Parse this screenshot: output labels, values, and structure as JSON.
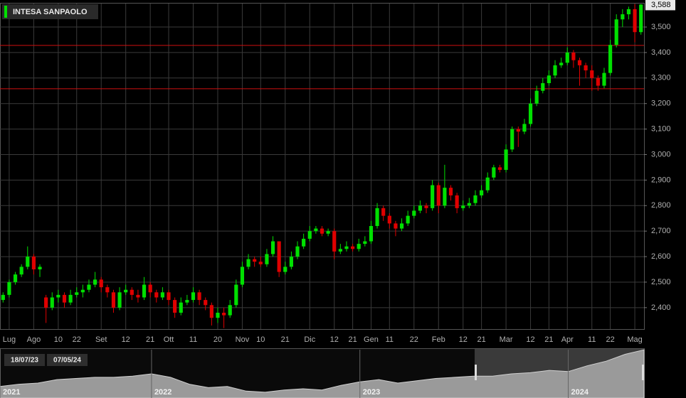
{
  "chart_data": {
    "type": "candlestick",
    "legend": "INTESA SANPAOLO",
    "up_color": "#00e000",
    "down_color": "#e00000",
    "grid": true,
    "ylim": [
      2.316,
      3.592
    ],
    "yticks": [
      {
        "value": 2.4,
        "label": "2,400"
      },
      {
        "value": 2.5,
        "label": "2,500"
      },
      {
        "value": 2.6,
        "label": "2,600"
      },
      {
        "value": 2.7,
        "label": "2,700"
      },
      {
        "value": 2.8,
        "label": "2,800"
      },
      {
        "value": 2.9,
        "label": "2,900"
      },
      {
        "value": 3.0,
        "label": "3,000"
      },
      {
        "value": 3.1,
        "label": "3,100"
      },
      {
        "value": 3.2,
        "label": "3,200"
      },
      {
        "value": 3.3,
        "label": "3,300"
      },
      {
        "value": 3.4,
        "label": "3,400"
      },
      {
        "value": 3.5,
        "label": "3,500"
      }
    ],
    "last_price": {
      "value": 3.588,
      "label": "3,588"
    },
    "hlines": [
      3.428,
      3.258
    ],
    "hline_color": "#d01010",
    "categories": [
      null,
      "Lug",
      null,
      null,
      null,
      "Ago",
      null,
      null,
      null,
      "10",
      null,
      null,
      "22",
      null,
      null,
      null,
      "Set",
      null,
      null,
      null,
      "12",
      null,
      null,
      null,
      "21",
      null,
      null,
      "Ott",
      null,
      null,
      null,
      "11",
      null,
      null,
      null,
      "20",
      null,
      null,
      null,
      "Nov",
      null,
      null,
      "10",
      null,
      null,
      null,
      "21",
      null,
      null,
      null,
      "Dic",
      null,
      null,
      null,
      "12",
      null,
      null,
      "21",
      null,
      null,
      "Gen",
      null,
      null,
      "11",
      null,
      null,
      null,
      "22",
      null,
      null,
      null,
      "Feb",
      null,
      null,
      null,
      "12",
      null,
      null,
      "21",
      null,
      null,
      null,
      "Mar",
      null,
      null,
      null,
      "12",
      null,
      null,
      "21",
      null,
      null,
      "Apr",
      null,
      null,
      null,
      "11",
      null,
      null,
      "22",
      null,
      null,
      null,
      "Mag",
      null
    ],
    "candles": [
      [
        2.43,
        2.46,
        2.42,
        2.45
      ],
      [
        2.45,
        2.51,
        2.44,
        2.5
      ],
      [
        2.5,
        2.54,
        2.49,
        2.53
      ],
      [
        2.53,
        2.57,
        2.52,
        2.56
      ],
      [
        2.56,
        2.64,
        2.55,
        2.6
      ],
      [
        2.6,
        2.61,
        2.53,
        2.55
      ],
      [
        2.55,
        2.57,
        2.52,
        2.56
      ],
      [
        2.44,
        2.45,
        2.34,
        2.4
      ],
      [
        2.4,
        2.46,
        2.39,
        2.44
      ],
      [
        2.44,
        2.47,
        2.42,
        2.45
      ],
      [
        2.45,
        2.46,
        2.4,
        2.42
      ],
      [
        2.42,
        2.47,
        2.41,
        2.45
      ],
      [
        2.45,
        2.48,
        2.44,
        2.46
      ],
      [
        2.46,
        2.49,
        2.44,
        2.47
      ],
      [
        2.47,
        2.51,
        2.46,
        2.49
      ],
      [
        2.49,
        2.54,
        2.48,
        2.51
      ],
      [
        2.51,
        2.52,
        2.46,
        2.48
      ],
      [
        2.48,
        2.49,
        2.44,
        2.46
      ],
      [
        2.46,
        2.47,
        2.38,
        2.4
      ],
      [
        2.4,
        2.48,
        2.39,
        2.46
      ],
      [
        2.46,
        2.49,
        2.45,
        2.47
      ],
      [
        2.47,
        2.48,
        2.43,
        2.45
      ],
      [
        2.45,
        2.47,
        2.42,
        2.44
      ],
      [
        2.44,
        2.52,
        2.43,
        2.49
      ],
      [
        2.49,
        2.5,
        2.44,
        2.46
      ],
      [
        2.46,
        2.47,
        2.42,
        2.44
      ],
      [
        2.44,
        2.48,
        2.43,
        2.46
      ],
      [
        2.46,
        2.47,
        2.41,
        2.43
      ],
      [
        2.43,
        2.44,
        2.36,
        2.38
      ],
      [
        2.38,
        2.44,
        2.37,
        2.42
      ],
      [
        2.42,
        2.45,
        2.41,
        2.43
      ],
      [
        2.43,
        2.48,
        2.42,
        2.46
      ],
      [
        2.46,
        2.47,
        2.41,
        2.43
      ],
      [
        2.43,
        2.44,
        2.39,
        2.41
      ],
      [
        2.41,
        2.42,
        2.33,
        2.36
      ],
      [
        2.36,
        2.4,
        2.34,
        2.38
      ],
      [
        2.38,
        2.4,
        2.32,
        2.37
      ],
      [
        2.37,
        2.43,
        2.36,
        2.41
      ],
      [
        2.41,
        2.51,
        2.4,
        2.49
      ],
      [
        2.49,
        2.58,
        2.48,
        2.56
      ],
      [
        2.56,
        2.61,
        2.55,
        2.59
      ],
      [
        2.59,
        2.6,
        2.56,
        2.58
      ],
      [
        2.58,
        2.6,
        2.56,
        2.57
      ],
      [
        2.57,
        2.63,
        2.56,
        2.61
      ],
      [
        2.61,
        2.68,
        2.6,
        2.66
      ],
      [
        2.66,
        2.66,
        2.52,
        2.54
      ],
      [
        2.54,
        2.58,
        2.53,
        2.56
      ],
      [
        2.56,
        2.62,
        2.55,
        2.6
      ],
      [
        2.6,
        2.66,
        2.59,
        2.64
      ],
      [
        2.64,
        2.69,
        2.63,
        2.67
      ],
      [
        2.67,
        2.72,
        2.66,
        2.7
      ],
      [
        2.7,
        2.72,
        2.69,
        2.71
      ],
      [
        2.71,
        2.72,
        2.68,
        2.69
      ],
      [
        2.69,
        2.71,
        2.68,
        2.7
      ],
      [
        2.7,
        2.71,
        2.59,
        2.62
      ],
      [
        2.62,
        2.65,
        2.61,
        2.63
      ],
      [
        2.63,
        2.66,
        2.62,
        2.64
      ],
      [
        2.64,
        2.65,
        2.62,
        2.63
      ],
      [
        2.63,
        2.67,
        2.62,
        2.65
      ],
      [
        2.65,
        2.68,
        2.64,
        2.66
      ],
      [
        2.66,
        2.74,
        2.65,
        2.72
      ],
      [
        2.72,
        2.81,
        2.71,
        2.79
      ],
      [
        2.79,
        2.8,
        2.74,
        2.76
      ],
      [
        2.76,
        2.77,
        2.71,
        2.73
      ],
      [
        2.73,
        2.74,
        2.68,
        2.71
      ],
      [
        2.71,
        2.75,
        2.7,
        2.73
      ],
      [
        2.73,
        2.78,
        2.72,
        2.76
      ],
      [
        2.76,
        2.8,
        2.75,
        2.78
      ],
      [
        2.78,
        2.82,
        2.77,
        2.8
      ],
      [
        2.8,
        2.81,
        2.77,
        2.79
      ],
      [
        2.79,
        2.9,
        2.78,
        2.88
      ],
      [
        2.88,
        2.89,
        2.77,
        2.8
      ],
      [
        2.8,
        2.96,
        2.79,
        2.87
      ],
      [
        2.87,
        2.88,
        2.82,
        2.84
      ],
      [
        2.84,
        2.85,
        2.77,
        2.79
      ],
      [
        2.79,
        2.82,
        2.78,
        2.8
      ],
      [
        2.8,
        2.83,
        2.79,
        2.81
      ],
      [
        2.81,
        2.86,
        2.8,
        2.84
      ],
      [
        2.84,
        2.88,
        2.83,
        2.86
      ],
      [
        2.86,
        2.93,
        2.85,
        2.91
      ],
      [
        2.91,
        2.96,
        2.9,
        2.95
      ],
      [
        2.95,
        2.96,
        2.93,
        2.94
      ],
      [
        2.94,
        3.04,
        2.93,
        3.02
      ],
      [
        3.02,
        3.11,
        3.01,
        3.1
      ],
      [
        3.1,
        3.11,
        3.03,
        3.09
      ],
      [
        3.09,
        3.14,
        3.08,
        3.12
      ],
      [
        3.12,
        3.22,
        3.11,
        3.2
      ],
      [
        3.2,
        3.27,
        3.19,
        3.25
      ],
      [
        3.25,
        3.3,
        3.24,
        3.28
      ],
      [
        3.28,
        3.33,
        3.27,
        3.31
      ],
      [
        3.31,
        3.37,
        3.3,
        3.35
      ],
      [
        3.35,
        3.38,
        3.34,
        3.36
      ],
      [
        3.36,
        3.42,
        3.35,
        3.4
      ],
      [
        3.4,
        3.41,
        3.34,
        3.37
      ],
      [
        3.37,
        3.38,
        3.27,
        3.35
      ],
      [
        3.35,
        3.36,
        3.3,
        3.33
      ],
      [
        3.33,
        3.35,
        3.25,
        3.3
      ],
      [
        3.3,
        3.31,
        3.25,
        3.27
      ],
      [
        3.27,
        3.34,
        3.26,
        3.32
      ],
      [
        3.32,
        3.45,
        3.31,
        3.43
      ],
      [
        3.43,
        3.55,
        3.42,
        3.53
      ],
      [
        3.53,
        3.57,
        3.5,
        3.55
      ],
      [
        3.55,
        3.58,
        3.53,
        3.57
      ],
      [
        3.57,
        3.59,
        3.44,
        3.48
      ],
      [
        3.48,
        3.59,
        3.47,
        3.588
      ]
    ],
    "navigator": {
      "range": [
        "18/07/23",
        "07/05/24"
      ],
      "ylim": [
        1.5,
        3.6
      ],
      "categories": [
        "2021",
        null,
        null,
        null,
        null,
        null,
        null,
        null,
        "2022",
        null,
        null,
        null,
        null,
        null,
        null,
        null,
        null,
        null,
        null,
        "2023",
        null,
        null,
        null,
        null,
        null,
        null,
        null,
        null,
        null,
        null,
        "2024",
        null,
        null,
        null,
        null
      ],
      "values": [
        2.0,
        2.1,
        2.15,
        2.3,
        2.35,
        2.4,
        2.4,
        2.45,
        2.55,
        2.4,
        2.1,
        1.95,
        2.0,
        1.8,
        1.75,
        1.85,
        1.9,
        1.85,
        2.05,
        2.2,
        2.3,
        2.15,
        2.25,
        2.35,
        2.4,
        2.45,
        2.45,
        2.55,
        2.6,
        2.7,
        2.65,
        2.9,
        3.1,
        3.4,
        3.59
      ]
    }
  }
}
